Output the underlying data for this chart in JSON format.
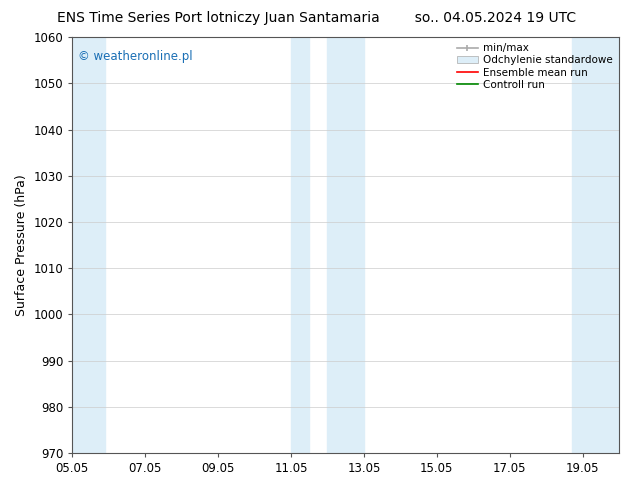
{
  "title": "ENS Time Series Port lotniczy Juan Santamaria",
  "title_right": "so.. 04.05.2024 19 UTC",
  "ylabel": "Surface Pressure (hPa)",
  "ylim": [
    970,
    1060
  ],
  "yticks": [
    970,
    980,
    990,
    1000,
    1010,
    1020,
    1030,
    1040,
    1050,
    1060
  ],
  "xtick_labels": [
    "05.05",
    "07.05",
    "09.05",
    "11.05",
    "13.05",
    "15.05",
    "17.05",
    "19.05"
  ],
  "xtick_positions": [
    0,
    2,
    4,
    6,
    8,
    10,
    12,
    14
  ],
  "xlim": [
    0,
    15
  ],
  "background_color": "#ffffff",
  "plot_bg_color": "#ffffff",
  "shaded_bands": [
    {
      "xmin": -0.1,
      "xmax": 0.9,
      "color": "#ddeef8"
    },
    {
      "xmin": 6.0,
      "xmax": 6.5,
      "color": "#ddeef8"
    },
    {
      "xmin": 7.0,
      "xmax": 8.0,
      "color": "#ddeef8"
    },
    {
      "xmin": 13.7,
      "xmax": 15.1,
      "color": "#ddeef8"
    }
  ],
  "watermark": "© weatheronline.pl",
  "watermark_color": "#1a6fb5",
  "legend_entries": [
    {
      "label": "min/max",
      "color": "#aaaaaa",
      "type": "errorbar"
    },
    {
      "label": "Odchylenie standardowe",
      "color": "#c8dff0",
      "type": "bar"
    },
    {
      "label": "Ensemble mean run",
      "color": "#ff0000",
      "type": "line"
    },
    {
      "label": "Controll run",
      "color": "#00aa00",
      "type": "line"
    }
  ],
  "font_family": "DejaVu Sans",
  "title_fontsize": 10,
  "tick_fontsize": 8.5,
  "ylabel_fontsize": 9,
  "legend_fontsize": 7.5
}
